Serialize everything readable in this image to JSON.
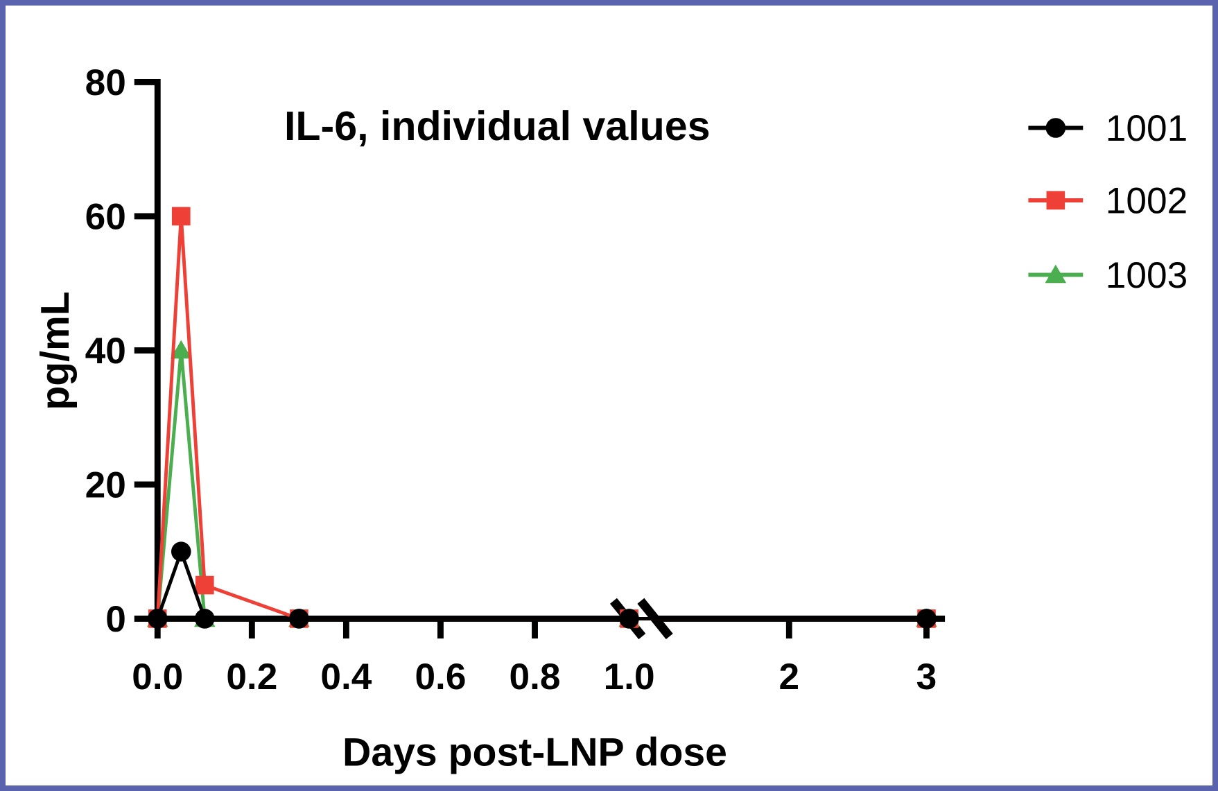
{
  "figure": {
    "border_color": "#5A63AD",
    "background_color": "#FFFFFF"
  },
  "chart_data": {
    "type": "line",
    "title": "IL-6, individual values",
    "xlabel": "Days post-LNP dose",
    "ylabel": "pg/mL",
    "ylim": [
      0,
      80
    ],
    "ytick_values": [
      0,
      20,
      40,
      60,
      80
    ],
    "ytick_labels": [
      "0",
      "20",
      "40",
      "60",
      "80"
    ],
    "x": [
      0,
      0.05,
      0.1,
      0.3,
      1,
      3
    ],
    "series": [
      {
        "name": "1003",
        "marker": "triangle",
        "color": "#4BAE4F",
        "values": [
          0,
          40,
          0,
          0,
          0,
          0
        ]
      },
      {
        "name": "1002",
        "marker": "square",
        "color": "#EE4036",
        "values": [
          0,
          60,
          5,
          0,
          0,
          0
        ]
      },
      {
        "name": "1001",
        "marker": "circle",
        "color": "#000000",
        "values": [
          0,
          10,
          0,
          0,
          0,
          0
        ]
      }
    ],
    "x_axis": {
      "break_after": 1.0,
      "segments": [
        {
          "tick_values": [
            0,
            0.2,
            0.4,
            0.6,
            0.8,
            1.0
          ],
          "tick_labels": [
            "0.0",
            "0.2",
            "0.4",
            "0.6",
            "0.8",
            "1.0"
          ]
        },
        {
          "tick_values": [
            2,
            3
          ],
          "tick_labels": [
            "2",
            "3"
          ]
        }
      ]
    },
    "legend": {
      "position": "top-right",
      "entries": [
        {
          "label": "1001",
          "marker": "circle",
          "color": "#000000"
        },
        {
          "label": "1002",
          "marker": "square",
          "color": "#EE4036"
        },
        {
          "label": "1003",
          "marker": "triangle",
          "color": "#4BAE4F"
        }
      ]
    },
    "grid": false,
    "axis_color": "#000000"
  }
}
